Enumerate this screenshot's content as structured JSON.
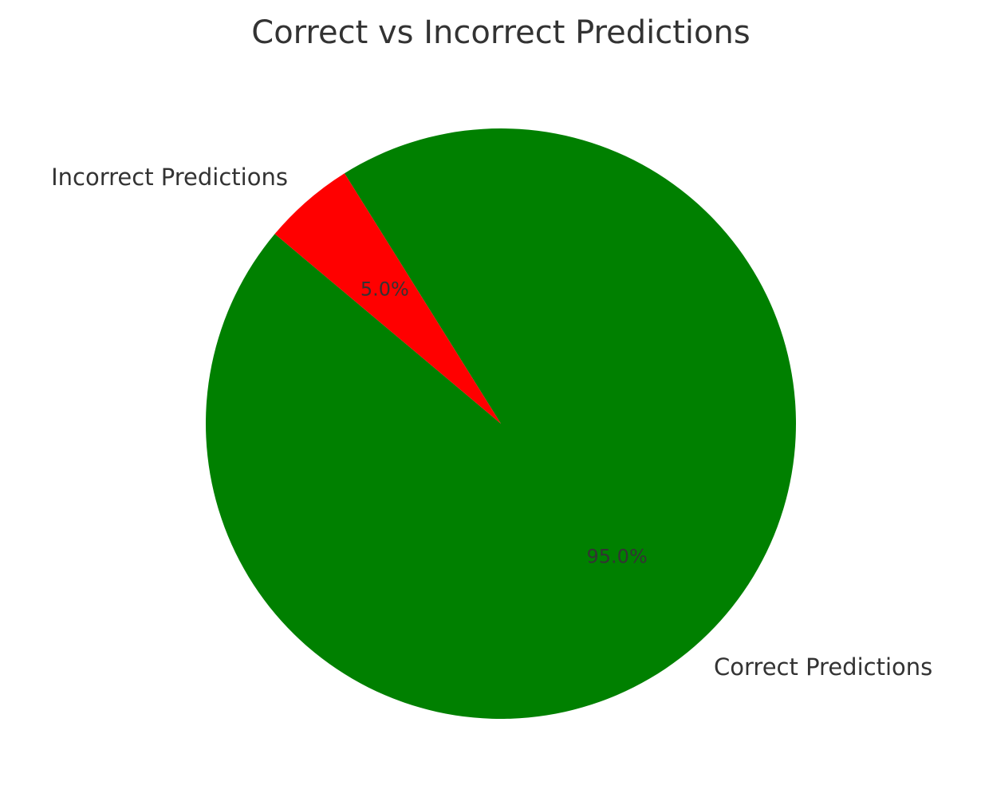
{
  "chart_data": {
    "type": "pie",
    "title": "Correct vs Incorrect Predictions",
    "categories": [
      "Correct Predictions",
      "Incorrect Predictions"
    ],
    "values": [
      95.0,
      5.0
    ],
    "percent_labels": [
      "95.0%",
      "5.0%"
    ],
    "colors": [
      "#008000",
      "#ff0000"
    ],
    "start_angle_deg": 140,
    "direction": "counterclockwise",
    "legend": "none"
  }
}
